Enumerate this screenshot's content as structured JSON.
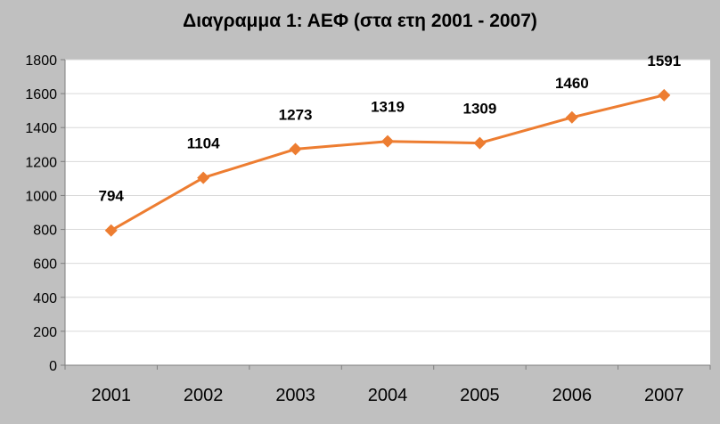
{
  "chart_data": {
    "type": "line",
    "title": "Διαγραμμα 1: ΑΕΦ (στα ετη 2001 - 2007)",
    "xlabel": "",
    "ylabel": "",
    "categories": [
      "2001",
      "2002",
      "2003",
      "2004",
      "2005",
      "2006",
      "2007"
    ],
    "series": [
      {
        "values": [
          794,
          1104,
          1273,
          1319,
          1309,
          1460,
          1591
        ]
      }
    ],
    "ylim": [
      0,
      1800
    ],
    "yticks": [
      0,
      200,
      400,
      600,
      800,
      1000,
      1200,
      1400,
      1600,
      1800
    ],
    "grid": true,
    "legend": "none",
    "data_labels": true,
    "colors": {
      "background": "#c0c0c0",
      "plot_area": "#ffffff",
      "series_line": "#ed7d31",
      "marker": "#ed7d31",
      "gridline": "#d9d9d9",
      "axis": "#7f7f7f",
      "text": "#000000"
    },
    "marker": "diamond-icon"
  }
}
